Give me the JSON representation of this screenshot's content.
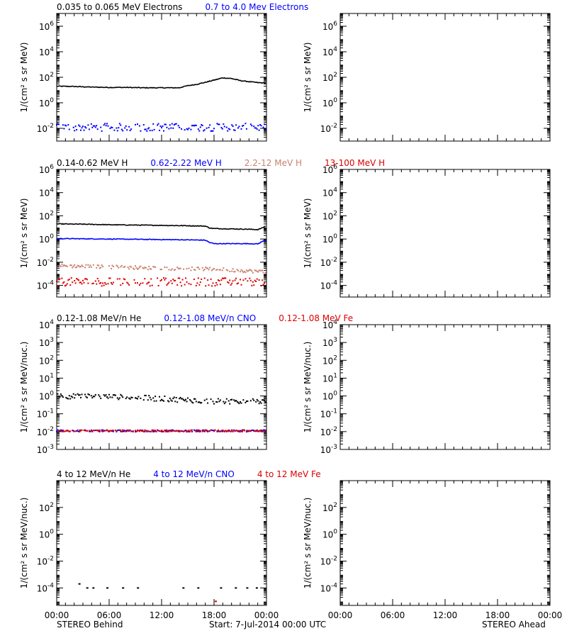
{
  "chart_data": [
    {
      "type": "scatter",
      "panel": "behind-electrons",
      "legend": [
        {
          "text": "0.035 to 0.065 MeV Electrons",
          "color": "#000000"
        },
        {
          "text": "0.7 to 4.0 Mev Electrons",
          "color": "#0000ff"
        }
      ],
      "ylabel": "1/(cm² s sr MeV)",
      "yscale": "log",
      "ylim_exp": [
        -3,
        7
      ],
      "yticks": [
        {
          "exp": -2,
          "label": "10-2"
        },
        {
          "exp": 0,
          "label": "100"
        },
        {
          "exp": 2,
          "label": "102"
        },
        {
          "exp": 4,
          "label": "104"
        },
        {
          "exp": 6,
          "label": "106"
        }
      ],
      "xlim_hours": [
        0,
        24
      ],
      "series": [
        {
          "name": "0.035 to 0.065 MeV Electrons",
          "color": "#000000",
          "style": "line",
          "x": [
            0,
            2,
            4,
            6,
            8,
            10,
            12,
            14,
            15,
            16,
            17,
            18,
            19,
            20,
            21,
            22,
            23,
            24
          ],
          "y": [
            20,
            19,
            17,
            16,
            16,
            15,
            15,
            15,
            22,
            28,
            40,
            60,
            90,
            80,
            55,
            45,
            38,
            35
          ]
        },
        {
          "name": "0.7 to 4.0 Mev Electrons",
          "color": "#0000ff",
          "style": "scatter",
          "x": [
            0,
            24
          ],
          "y": [
            0.012,
            0.012
          ],
          "spread": 0.3
        }
      ]
    },
    {
      "type": "scatter",
      "panel": "behind-protons",
      "legend": [
        {
          "text": "0.14-0.62 MeV H",
          "color": "#000000"
        },
        {
          "text": "0.62-2.22 MeV H",
          "color": "#0000ff"
        },
        {
          "text": "2.2-12 MeV H",
          "color": "#c8826e"
        },
        {
          "text": "13-100 MeV H",
          "color": "#dd0000"
        }
      ],
      "ylabel": "1/(cm² s sr MeV)",
      "yscale": "log",
      "ylim_exp": [
        -5,
        6
      ],
      "yticks": [
        {
          "exp": -4,
          "label": "10-4"
        },
        {
          "exp": -2,
          "label": "10-2"
        },
        {
          "exp": 0,
          "label": "100"
        },
        {
          "exp": 2,
          "label": "102"
        },
        {
          "exp": 4,
          "label": "104"
        },
        {
          "exp": 6,
          "label": "106"
        }
      ],
      "xlim_hours": [
        0,
        24
      ],
      "series": [
        {
          "name": "0.14-0.62 MeV H",
          "color": "#000000",
          "style": "line",
          "x": [
            0,
            3,
            6,
            9,
            12,
            15,
            17,
            17.5,
            18,
            20,
            22,
            23,
            23.5,
            24
          ],
          "y": [
            20,
            19,
            17,
            16,
            15,
            14,
            13,
            9,
            8,
            7.5,
            7,
            6.5,
            9,
            14
          ]
        },
        {
          "name": "0.62-2.22 MeV H",
          "color": "#0000ff",
          "style": "line",
          "x": [
            0,
            3,
            6,
            9,
            12,
            15,
            17,
            17.5,
            18,
            20,
            22,
            23,
            23.5,
            24
          ],
          "y": [
            1.1,
            1.05,
            1.0,
            0.95,
            0.9,
            0.85,
            0.8,
            0.5,
            0.4,
            0.4,
            0.4,
            0.38,
            0.6,
            0.9
          ]
        },
        {
          "name": "2.2-12 MeV H",
          "color": "#c8826e",
          "style": "scatter",
          "x": [
            0,
            6,
            12,
            18,
            24
          ],
          "y": [
            0.005,
            0.004,
            0.003,
            0.0025,
            0.0015
          ],
          "spread": 0.15
        },
        {
          "name": "13-100 MeV H",
          "color": "#dd0000",
          "style": "scatter",
          "x": [
            0,
            24
          ],
          "y": [
            0.0002,
            0.0002
          ],
          "spread": 0.35
        }
      ]
    },
    {
      "type": "scatter",
      "panel": "behind-ions-low",
      "legend": [
        {
          "text": "0.12-1.08 MeV/n He",
          "color": "#000000"
        },
        {
          "text": "0.12-1.08 MeV/n CNO",
          "color": "#0000ff"
        },
        {
          "text": "0.12-1.08 MeV Fe",
          "color": "#dd0000"
        }
      ],
      "ylabel": "1/(cm² s sr MeV/nuc.)",
      "yscale": "log",
      "ylim_exp": [
        -3,
        4
      ],
      "yticks": [
        {
          "exp": -3,
          "label": "10-3"
        },
        {
          "exp": -2,
          "label": "10-2"
        },
        {
          "exp": -1,
          "label": "10-1"
        },
        {
          "exp": 0,
          "label": "100"
        },
        {
          "exp": 1,
          "label": "101"
        },
        {
          "exp": 2,
          "label": "102"
        },
        {
          "exp": 3,
          "label": "103"
        },
        {
          "exp": 4,
          "label": "104"
        }
      ],
      "xlim_hours": [
        0,
        24
      ],
      "series": [
        {
          "name": "0.12-1.08 MeV/n He",
          "color": "#000000",
          "style": "scatter",
          "x": [
            0,
            6,
            12,
            18,
            24
          ],
          "y": [
            1.0,
            0.9,
            0.7,
            0.5,
            0.5
          ],
          "spread": 0.15
        },
        {
          "name": "0.12-1.08 MeV/n CNO",
          "color": "#0000ff",
          "style": "scatter",
          "x": [
            0,
            24
          ],
          "y": [
            0.011,
            0.011
          ],
          "spread": 0.05
        },
        {
          "name": "0.12-1.08 MeV Fe",
          "color": "#dd0000",
          "style": "scatter",
          "x": [
            0,
            24
          ],
          "y": [
            0.011,
            0.011
          ],
          "spread": 0.05
        }
      ]
    },
    {
      "type": "scatter",
      "panel": "behind-ions-high",
      "legend": [
        {
          "text": "4 to 12 MeV/n He",
          "color": "#000000"
        },
        {
          "text": "4 to 12 MeV/n CNO",
          "color": "#0000ff"
        },
        {
          "text": "4 to 12 MeV Fe",
          "color": "#dd0000"
        }
      ],
      "ylabel": "1/(cm² s sr MeV/nuc.)",
      "yscale": "log",
      "ylim_exp": [
        -5.3,
        4
      ],
      "yticks": [
        {
          "exp": -4,
          "label": "10-4"
        },
        {
          "exp": -2,
          "label": "10-2"
        },
        {
          "exp": 0,
          "label": "100"
        },
        {
          "exp": 2,
          "label": "102"
        }
      ],
      "xlim_hours": [
        0,
        24
      ],
      "series": [
        {
          "name": "4 to 12 MeV/n He",
          "color": "#000000",
          "style": "scatter",
          "x": [
            2.6,
            3.5,
            4.2,
            5.8,
            7.6,
            9.3,
            14.5,
            16.2,
            18.8,
            20.5,
            21.8,
            22.9
          ],
          "y": [
            0.0002,
            0.0001,
            0.0001,
            0.0001,
            0.0001,
            0.0001,
            0.0001,
            0.0001,
            0.0001,
            0.0001,
            0.0001,
            0.0001
          ]
        },
        {
          "name": "4 to 12 MeV Fe",
          "color": "#dd0000",
          "style": "scatter",
          "x": [
            18.2
          ],
          "y": [
            1e-05
          ]
        }
      ]
    },
    {
      "type": "scatter",
      "panel": "ahead-electrons",
      "ylabel": "1/(cm² s sr MeV)",
      "yscale": "log",
      "ylim_exp": [
        -3,
        7
      ],
      "yticks": [
        {
          "exp": -2,
          "label": "10-2"
        },
        {
          "exp": 0,
          "label": "100"
        },
        {
          "exp": 2,
          "label": "102"
        },
        {
          "exp": 4,
          "label": "104"
        },
        {
          "exp": 6,
          "label": "106"
        }
      ],
      "xlim_hours": [
        0,
        24
      ],
      "series": []
    },
    {
      "type": "scatter",
      "panel": "ahead-protons",
      "ylabel": "1/(cm² s sr MeV)",
      "yscale": "log",
      "ylim_exp": [
        -5,
        6
      ],
      "yticks": [
        {
          "exp": -4,
          "label": "10-4"
        },
        {
          "exp": -2,
          "label": "10-2"
        },
        {
          "exp": 0,
          "label": "100"
        },
        {
          "exp": 2,
          "label": "102"
        },
        {
          "exp": 4,
          "label": "104"
        },
        {
          "exp": 6,
          "label": "106"
        }
      ],
      "xlim_hours": [
        0,
        24
      ],
      "series": []
    },
    {
      "type": "scatter",
      "panel": "ahead-ions-low",
      "ylabel": "1/(cm² s sr MeV/nuc.)",
      "yscale": "log",
      "ylim_exp": [
        -3,
        4
      ],
      "yticks": [
        {
          "exp": -3,
          "label": "10-3"
        },
        {
          "exp": -2,
          "label": "10-2"
        },
        {
          "exp": -1,
          "label": "10-1"
        },
        {
          "exp": 0,
          "label": "100"
        },
        {
          "exp": 1,
          "label": "101"
        },
        {
          "exp": 2,
          "label": "102"
        },
        {
          "exp": 3,
          "label": "103"
        },
        {
          "exp": 4,
          "label": "104"
        }
      ],
      "xlim_hours": [
        0,
        24
      ],
      "series": []
    },
    {
      "type": "scatter",
      "panel": "ahead-ions-high",
      "ylabel": "1/(cm² s sr MeV/nuc.)",
      "yscale": "log",
      "ylim_exp": [
        -5.3,
        4
      ],
      "yticks": [
        {
          "exp": -4,
          "label": "10-4"
        },
        {
          "exp": -2,
          "label": "10-2"
        },
        {
          "exp": 0,
          "label": "100"
        },
        {
          "exp": 2,
          "label": "102"
        }
      ],
      "xlim_hours": [
        0,
        24
      ],
      "series": []
    }
  ],
  "xticks": [
    {
      "hour": 0,
      "label": "00:00"
    },
    {
      "hour": 6,
      "label": "06:00"
    },
    {
      "hour": 12,
      "label": "12:00"
    },
    {
      "hour": 18,
      "label": "18:00"
    },
    {
      "hour": 24,
      "label": "00:00"
    }
  ],
  "footer": {
    "left": "STEREO Behind",
    "center": "Start:  7-Jul-2014 00:00 UTC",
    "right": "STEREO Ahead"
  }
}
